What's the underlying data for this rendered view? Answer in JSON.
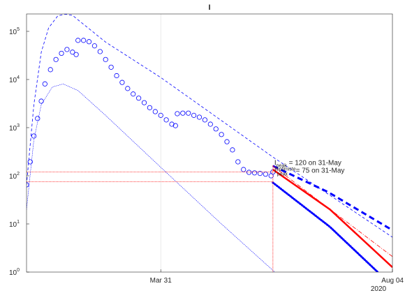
{
  "chart_data": {
    "type": "line",
    "title": "I",
    "xlim": [
      "2020-01-18",
      "2020-08-04"
    ],
    "xticks": [
      {
        "value": "2020-03-31",
        "label": "Mar 31"
      },
      {
        "value": "2020-08-04",
        "label": "Aug 04"
      }
    ],
    "x_year_label": "2020",
    "xgrid": true,
    "ylim": [
      1,
      230000
    ],
    "log_y": true,
    "yticks": [
      {
        "value": 1,
        "label": "10",
        "sup": "0"
      },
      {
        "value": 10,
        "label": "10",
        "sup": "1"
      },
      {
        "value": 100,
        "label": "10",
        "sup": "2"
      },
      {
        "value": 1000,
        "label": "10",
        "sup": "3"
      },
      {
        "value": 10000,
        "label": "10",
        "sup": "4"
      },
      {
        "value": 100000,
        "label": "10",
        "sup": "5"
      }
    ],
    "series": [
      {
        "color": "#0000ff",
        "style": "circle",
        "width": 0.8,
        "x": [
          "2020-01-18",
          "2020-01-20",
          "2020-01-22",
          "2020-01-24",
          "2020-01-26",
          "2020-01-28",
          "2020-01-31",
          "2020-02-03",
          "2020-02-06",
          "2020-02-09",
          "2020-02-12",
          "2020-02-14",
          "2020-02-15",
          "2020-02-18",
          "2020-02-21",
          "2020-02-24",
          "2020-02-27",
          "2020-03-01",
          "2020-03-04",
          "2020-03-07",
          "2020-03-10",
          "2020-03-13",
          "2020-03-16",
          "2020-03-19",
          "2020-03-22",
          "2020-03-25",
          "2020-03-28",
          "2020-03-31",
          "2020-04-03",
          "2020-04-06",
          "2020-04-08",
          "2020-04-09",
          "2020-04-12",
          "2020-04-15",
          "2020-04-18",
          "2020-04-21",
          "2020-04-24",
          "2020-04-27",
          "2020-04-30",
          "2020-05-03",
          "2020-05-06",
          "2020-05-09",
          "2020-05-12",
          "2020-05-15",
          "2020-05-18",
          "2020-05-21",
          "2020-05-24",
          "2020-05-27",
          "2020-05-30",
          "2020-05-31"
        ],
        "values": [
          65,
          195,
          670,
          1550,
          3550,
          8100,
          16000,
          26000,
          35000,
          42000,
          37000,
          33000,
          65000,
          65000,
          61000,
          50000,
          38000,
          26000,
          18000,
          12000,
          8700,
          6500,
          5000,
          4100,
          3300,
          2600,
          2150,
          1800,
          1450,
          1180,
          1100,
          1950,
          2000,
          2000,
          1800,
          1650,
          1450,
          1180,
          940,
          720,
          510,
          345,
          195,
          135,
          118,
          115,
          112,
          108,
          100,
          120
        ]
      },
      {
        "color": "#0000ff",
        "style": "dashed",
        "width": 0.8,
        "x": [
          "2020-01-18",
          "2020-01-22",
          "2020-01-26",
          "2020-01-30",
          "2020-02-04",
          "2020-02-08",
          "2020-02-12",
          "2020-03-01",
          "2020-03-31",
          "2020-05-31",
          "2020-08-04"
        ],
        "values": [
          65,
          3000,
          37000,
          118000,
          210000,
          228000,
          215000,
          60000,
          11000,
          245,
          5.3
        ]
      },
      {
        "color": "#0000ff",
        "style": "dotted",
        "width": 0.6,
        "x": [
          "2020-01-18",
          "2020-01-22",
          "2020-01-26",
          "2020-02-01",
          "2020-02-07",
          "2020-02-15",
          "2020-03-01",
          "2020-03-31",
          "2020-05-03",
          "2020-06-01"
        ],
        "values": [
          20,
          560,
          3000,
          7000,
          8100,
          5900,
          1800,
          150,
          10,
          1
        ]
      },
      {
        "color": "#0000ff",
        "style": "dashed",
        "width": 3,
        "x": [
          "2020-05-31",
          "2020-06-30",
          "2020-08-04"
        ],
        "values": [
          160,
          46,
          7.4
        ]
      },
      {
        "color": "#ff0000",
        "style": "dashdot",
        "width": 0.8,
        "x": [
          "2020-05-31",
          "2020-08-04"
        ],
        "values": [
          160,
          2.1
        ]
      },
      {
        "color": "#ff0000",
        "style": "solid",
        "width": 2.5,
        "x": [
          "2020-05-31",
          "2020-07-01",
          "2020-08-04"
        ],
        "values": [
          135,
          20,
          1.26
        ]
      },
      {
        "color": "#0000ff",
        "style": "dotted",
        "width": 3,
        "x": [
          "2020-05-31",
          "2020-07-01",
          "2020-07-27"
        ],
        "values": [
          72,
          8.7,
          1
        ]
      }
    ],
    "peaks": [
      {
        "value": 120,
        "date": "2020-05-31",
        "base": "I",
        "sub": "peak",
        "text": " = 120 on 31-May"
      },
      {
        "value": 75,
        "date": "2020-05-31",
        "base": "I",
        "sup": "optimiste",
        "sub": "peak",
        "text": " = 75 on 31-May"
      }
    ],
    "peak_color": "#ff0000"
  }
}
